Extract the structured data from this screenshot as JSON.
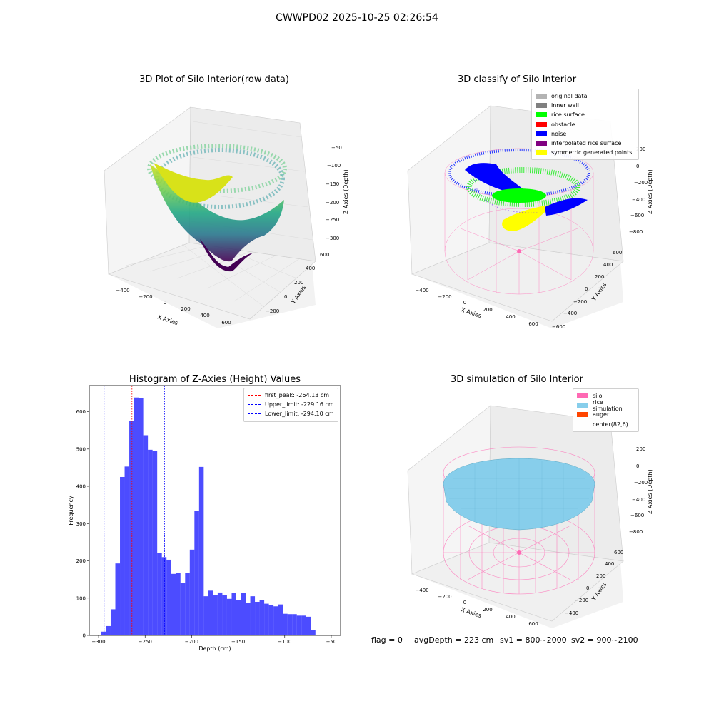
{
  "figure": {
    "suptitle": "CWWPD02 2025-10-25 02:26:54",
    "footer": {
      "flag": "flag = 0",
      "avg_depth": "avgDepth = 223 cm",
      "sv1": "sv1 = 800~2000",
      "sv2": "sv2 = 900~2100"
    }
  },
  "panels": {
    "raw": {
      "title": "3D Plot of Silo Interior(row data)",
      "xlabel": "X Axies",
      "ylabel": "Y Axies",
      "zlabel": "Z Axies (Depth)",
      "xticks": [
        "−400",
        "−200",
        "0",
        "200",
        "400",
        "600"
      ],
      "yticks": [
        "−200",
        "0",
        "200",
        "400",
        "600"
      ],
      "zticks": [
        "−50",
        "−100",
        "−150",
        "−200",
        "−250",
        "−300"
      ]
    },
    "classify": {
      "title": "3D classify of Silo Interior",
      "xlabel": "X Axies",
      "ylabel": "Y Axies",
      "zlabel": "Z Axies (Depth)",
      "xticks": [
        "−400",
        "−200",
        "0",
        "200",
        "400",
        "600"
      ],
      "yticks": [
        "−600",
        "−400",
        "−200",
        "0",
        "200",
        "400",
        "600"
      ],
      "zticks": [
        "200",
        "0",
        "−200",
        "−400",
        "−600",
        "−800"
      ],
      "legend": [
        {
          "label": "original data",
          "color": "#b3b3b3"
        },
        {
          "label": "inner wall",
          "color": "#808080"
        },
        {
          "label": "rice surface",
          "color": "#00ff00"
        },
        {
          "label": "obstacle",
          "color": "#ff0000"
        },
        {
          "label": "noise",
          "color": "#0000ff"
        },
        {
          "label": "interpolated rice surface",
          "color": "#800080"
        },
        {
          "label": "symmetric generated points",
          "color": "#ffff00"
        }
      ]
    },
    "simulation": {
      "title": "3D simulation of Silo Interior",
      "xlabel": "X Axies",
      "ylabel": "Y Axies",
      "zlabel": "Z Axies (Depth)",
      "xticks": [
        "−400",
        "−200",
        "0",
        "200",
        "400",
        "600"
      ],
      "yticks": [
        "−400",
        "−200",
        "0",
        "200",
        "400",
        "600"
      ],
      "zticks": [
        "200",
        "0",
        "−200",
        "−400",
        "−600",
        "−800"
      ],
      "legend": [
        {
          "label": "silo",
          "color": "#ff69b4"
        },
        {
          "label": "rice simulation",
          "color": "#87ceeb"
        },
        {
          "label": "auger",
          "color": "#ff4500"
        },
        {
          "label": "center(82,6)",
          "color": ""
        }
      ]
    }
  },
  "chart_data": {
    "type": "bar",
    "title": "Histogram of Z-Axies (Height) Values",
    "xlabel": "Depth (cm)",
    "ylabel": "Frequency",
    "xlim": [
      -310,
      -40
    ],
    "ylim": [
      0,
      670
    ],
    "xticks": [
      -300,
      -250,
      -200,
      -150,
      -100,
      -50
    ],
    "yticks": [
      0,
      100,
      200,
      300,
      400,
      500,
      600
    ],
    "bar_color": "#0000ff",
    "bar_start": -297,
    "bin_width": 5,
    "values": [
      10,
      25,
      70,
      193,
      425,
      453,
      575,
      638,
      636,
      537,
      498,
      495,
      222,
      210,
      203,
      165,
      168,
      140,
      168,
      230,
      335,
      452,
      105,
      120,
      108,
      115,
      108,
      98,
      113,
      95,
      113,
      88,
      105,
      90,
      95,
      85,
      82,
      78,
      83,
      58,
      57,
      57,
      53,
      53,
      50,
      15
    ],
    "vlines": [
      {
        "label": "first_peak: -264.13 cm",
        "x": -264.13,
        "color": "#ff0000"
      },
      {
        "label": "Upper_limit: -229.16 cm",
        "x": -229.16,
        "color": "#0000ff"
      },
      {
        "label": "Lower_limit: -294.10 cm",
        "x": -294.1,
        "color": "#0000ff"
      }
    ]
  }
}
